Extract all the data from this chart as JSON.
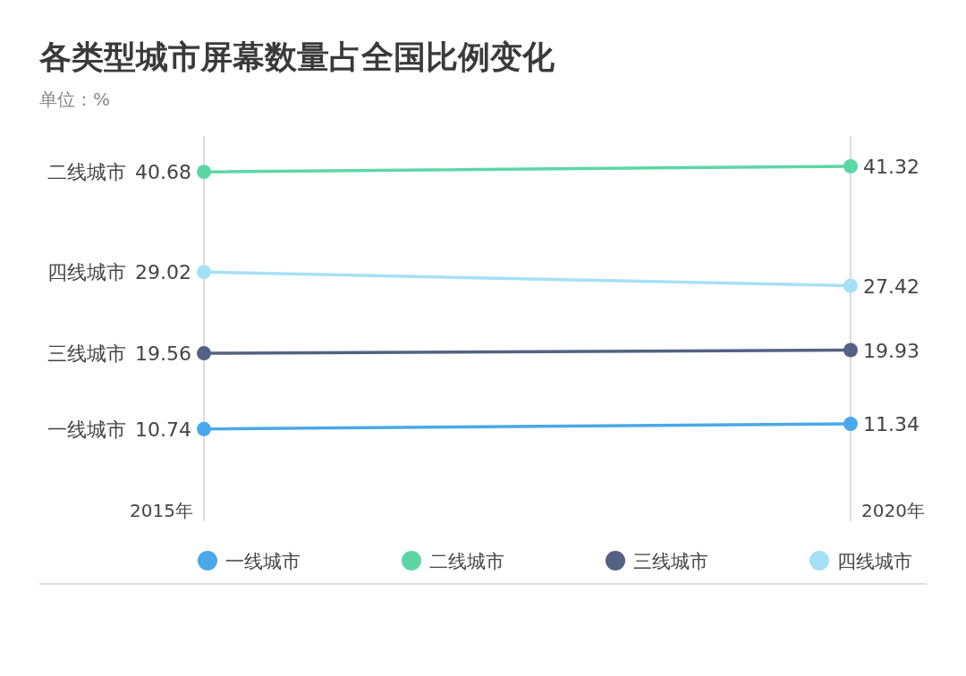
{
  "chart_data": {
    "type": "line",
    "title": "各类型城市屏幕数量占全国比例变化",
    "subtitle": "单位：%",
    "categories": [
      "2015年",
      "2020年"
    ],
    "series": [
      {
        "name": "一线城市",
        "color": "#4aa8ea",
        "values": [
          10.74,
          11.34
        ]
      },
      {
        "name": "二线城市",
        "color": "#5dd6a6",
        "values": [
          40.68,
          41.32
        ]
      },
      {
        "name": "三线城市",
        "color": "#536283",
        "values": [
          19.56,
          19.93
        ]
      },
      {
        "name": "四线城市",
        "color": "#a6e0f6",
        "values": [
          29.02,
          27.42
        ]
      }
    ],
    "data_labels": true,
    "ref_lines": [
      {
        "axis": "x",
        "value": "2015年",
        "color": "#cfcfcf"
      },
      {
        "axis": "x",
        "value": "2020年",
        "color": "#cfcfcf"
      }
    ],
    "legend": "bottom",
    "marker": "circle",
    "line_style": "solid"
  }
}
